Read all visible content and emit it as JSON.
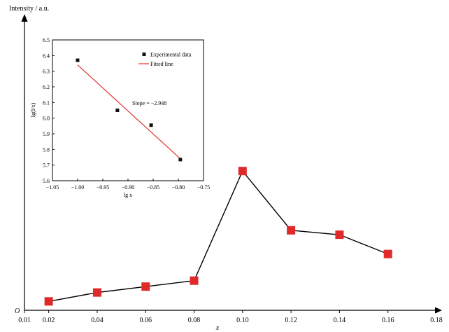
{
  "chart_data": [
    {
      "type": "line",
      "title": "",
      "ylabel": "Intensity / a.u.",
      "xlabel": "x",
      "origin_label": "O",
      "x_ticks": [
        0.01,
        0.02,
        0.04,
        0.06,
        0.08,
        0.1,
        0.12,
        0.14,
        0.16,
        0.18
      ],
      "x_tick_labels": [
        "0.01",
        "0.02",
        "0.04",
        "0.06",
        "0.08",
        "0.10",
        "0.12",
        "0.14",
        "0.16",
        "0.18"
      ],
      "xlim": [
        0.01,
        0.18
      ],
      "y_axis_numbered": false,
      "marker": "square",
      "colors": {
        "marker": "#e02a2a",
        "line": "#000000"
      },
      "series": [
        {
          "x": [
            0.02,
            0.04,
            0.06,
            0.08,
            0.1,
            0.12,
            0.14,
            0.16
          ],
          "y": [
            0.03,
            0.06,
            0.08,
            0.1,
            0.47,
            0.27,
            0.255,
            0.19
          ]
        }
      ]
    },
    {
      "type": "scatter",
      "title": "",
      "xlabel": "lg x",
      "ylabel": "lg(I/x)",
      "xlim": [
        -1.05,
        -0.75
      ],
      "ylim": [
        5.6,
        6.5
      ],
      "x_ticks": [
        -1.05,
        -1.0,
        -0.95,
        -0.9,
        -0.85,
        -0.8,
        -0.75
      ],
      "x_tick_labels": [
        "−1.05",
        "−1.00",
        "−0.95",
        "−0.90",
        "−0.85",
        "−0.80",
        "−0.75"
      ],
      "y_ticks": [
        5.6,
        5.7,
        5.8,
        5.9,
        6.0,
        6.1,
        6.2,
        6.3,
        6.4,
        6.5
      ],
      "y_tick_labels": [
        "5.6",
        "5.7",
        "5.8",
        "5.9",
        "6.0",
        "6.1",
        "6.2",
        "6.3",
        "6.4",
        "6.5"
      ],
      "legend_placement": "top-right",
      "series": [
        {
          "name": "Experimental data",
          "kind": "points",
          "color": "#111111",
          "x": [
            -1.0,
            -0.921,
            -0.854,
            -0.796
          ],
          "y": [
            6.37,
            6.05,
            5.955,
            5.735
          ]
        },
        {
          "name": "Fitted line",
          "kind": "line",
          "color": "#e0332f",
          "x": [
            -1.0,
            -0.796
          ],
          "y": [
            6.34,
            5.74
          ]
        }
      ],
      "annotation": "Slope = −2.948"
    }
  ]
}
